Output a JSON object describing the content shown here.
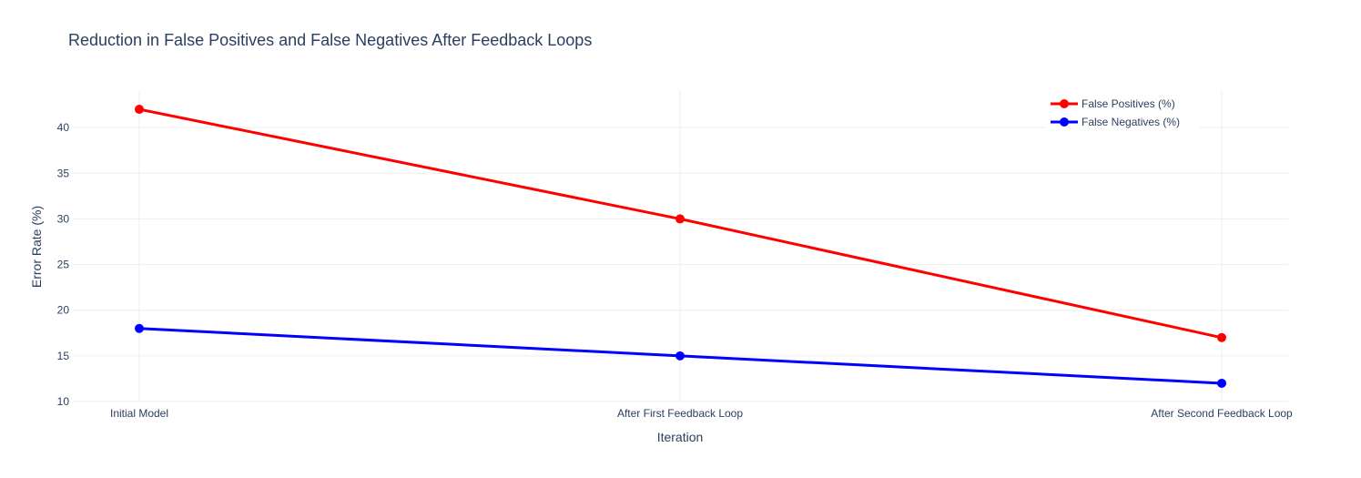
{
  "chart_data": {
    "type": "line",
    "title": "Reduction in False Positives and False Negatives After Feedback Loops",
    "xlabel": "Iteration",
    "ylabel": "Error Rate (%)",
    "categories": [
      "Initial Model",
      "After First Feedback Loop",
      "After Second Feedback Loop"
    ],
    "y_ticks": [
      10,
      15,
      20,
      25,
      30,
      35,
      40
    ],
    "ylim": [
      10,
      44
    ],
    "grid": true,
    "legend_position": "top-right",
    "series": [
      {
        "name": "False Positives (%)",
        "color": "#ff0000",
        "values": [
          42,
          30,
          17
        ]
      },
      {
        "name": "False Negatives (%)",
        "color": "#0000ff",
        "values": [
          18,
          15,
          12
        ]
      }
    ]
  }
}
